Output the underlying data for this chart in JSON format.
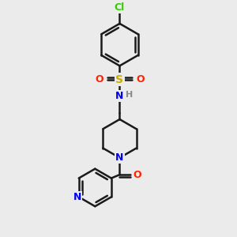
{
  "background_color": "#ebebeb",
  "bond_color": "#1a1a1a",
  "atom_colors": {
    "Cl": "#33cc00",
    "S": "#ccaa00",
    "O": "#ff2200",
    "N": "#0000ee",
    "H": "#888888",
    "C": "#1a1a1a"
  },
  "figsize": [
    3.0,
    3.0
  ],
  "dpi": 100
}
